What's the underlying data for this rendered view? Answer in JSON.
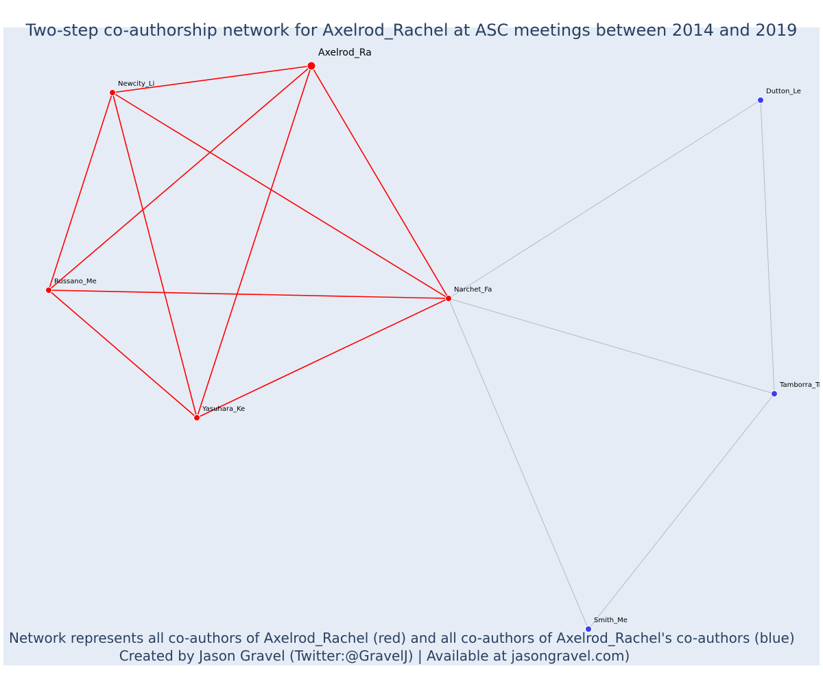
{
  "title": "Two-step co-authorship network for Axelrod_Rachel at ASC meetings between 2014 and 2019",
  "caption": {
    "line1": "Network represents all co-authors of Axelrod_Rachel (red) and all co-authors of Axelrod_Rachel's co-authors (blue)",
    "line2": "Created by Jason Gravel (Twitter:@GravelJ) | Available at jasongravel.com)"
  },
  "colors": {
    "direct": "#ff0000",
    "indirect": "#3d3df5",
    "direct_edge": "#ff0000",
    "indirect_edge": "#b4b8cc",
    "background": "#e5ecf6",
    "text": "#2a3f5f"
  },
  "nodes": [
    {
      "id": "Axelrod_Ra",
      "label": "Axelrod_Ra",
      "group": "focal"
    },
    {
      "id": "Newcity_Li",
      "label": "Newcity_Li",
      "group": "direct"
    },
    {
      "id": "Russano_Me",
      "label": "Russano_Me",
      "group": "direct"
    },
    {
      "id": "Yasuhara_Ke",
      "label": "Yasuhara_Ke",
      "group": "direct"
    },
    {
      "id": "Narchet_Fa",
      "label": "Narchet_Fa",
      "group": "direct"
    },
    {
      "id": "Dutton_Le",
      "label": "Dutton_Le",
      "group": "indirect"
    },
    {
      "id": "Tamborra_Tr",
      "label": "Tamborra_Tr",
      "group": "indirect"
    },
    {
      "id": "Smith_Me",
      "label": "Smith_Me",
      "group": "indirect"
    }
  ],
  "edges": [
    {
      "source": "Axelrod_Ra",
      "target": "Newcity_Li",
      "type": "direct"
    },
    {
      "source": "Axelrod_Ra",
      "target": "Russano_Me",
      "type": "direct"
    },
    {
      "source": "Axelrod_Ra",
      "target": "Yasuhara_Ke",
      "type": "direct"
    },
    {
      "source": "Axelrod_Ra",
      "target": "Narchet_Fa",
      "type": "direct"
    },
    {
      "source": "Newcity_Li",
      "target": "Russano_Me",
      "type": "direct"
    },
    {
      "source": "Newcity_Li",
      "target": "Yasuhara_Ke",
      "type": "direct"
    },
    {
      "source": "Newcity_Li",
      "target": "Narchet_Fa",
      "type": "direct"
    },
    {
      "source": "Russano_Me",
      "target": "Narchet_Fa",
      "type": "direct"
    },
    {
      "source": "Russano_Me",
      "target": "Yasuhara_Ke",
      "type": "direct"
    },
    {
      "source": "Yasuhara_Ke",
      "target": "Narchet_Fa",
      "type": "direct"
    },
    {
      "source": "Narchet_Fa",
      "target": "Dutton_Le",
      "type": "indirect"
    },
    {
      "source": "Narchet_Fa",
      "target": "Tamborra_Tr",
      "type": "indirect"
    },
    {
      "source": "Narchet_Fa",
      "target": "Smith_Me",
      "type": "indirect"
    },
    {
      "source": "Dutton_Le",
      "target": "Tamborra_Tr",
      "type": "indirect"
    },
    {
      "source": "Tamborra_Tr",
      "target": "Smith_Me",
      "type": "indirect"
    }
  ]
}
